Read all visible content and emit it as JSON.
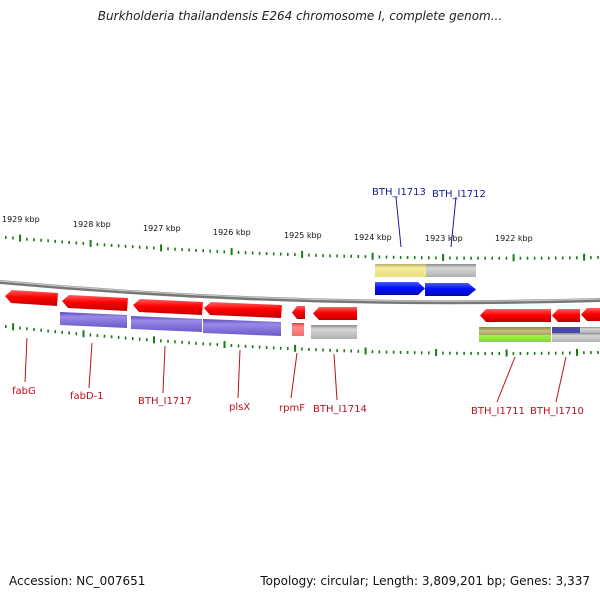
{
  "title": "Burkholderia thailandensis E264 chromosome I, complete genom...",
  "footer": {
    "accession": "Accession: NC_007651",
    "topology": "Topology: circular; Length: 3,809,201 bp; Genes: 3,337"
  },
  "scale_labels": [
    "1929 kbp",
    "1928 kbp",
    "1927 kbp",
    "1926 kbp",
    "1925 kbp",
    "1924 kbp",
    "1923 kbp",
    "1922 kbp"
  ],
  "genes_top": [
    "BTH_I1713",
    "BTH_I1712"
  ],
  "genes_bottom": [
    "fabG",
    "fabD-1",
    "BTH_I1717",
    "plsX",
    "rpmF",
    "BTH_I1714",
    "BTH_I1711",
    "BTH_I1710"
  ],
  "colors": {
    "forward_label": "#1a1a9a",
    "reverse_label": "#c0101a",
    "gene_red": "#ff1010",
    "gene_blue": "#0a1aff",
    "cds_purple": "#7b6ad0",
    "tick_green": "#1a7a1a",
    "backbone": "#8a8a8a"
  }
}
